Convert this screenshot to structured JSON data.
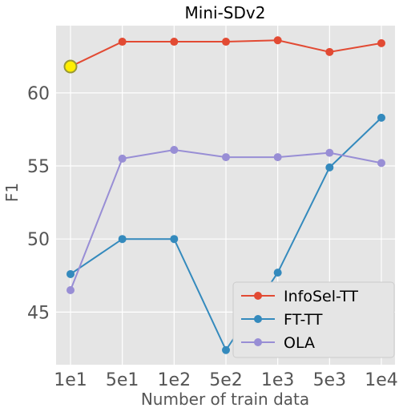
{
  "chart_data": {
    "type": "line",
    "title": "Mini-SDv2",
    "xlabel": "Number of train data",
    "ylabel": "F1",
    "categories": [
      "1e1",
      "5e1",
      "1e2",
      "5e2",
      "1e3",
      "5e3",
      "1e4"
    ],
    "ylim": [
      41.4,
      64.6
    ],
    "yticks": [
      45,
      50,
      55,
      60
    ],
    "grid": true,
    "legend_position": "bottom-right",
    "series": [
      {
        "name": "InfoSel-TT",
        "color": "#E24A33",
        "values": [
          61.8,
          63.5,
          63.5,
          63.5,
          63.6,
          62.8,
          63.4
        ]
      },
      {
        "name": "FT-TT",
        "color": "#348ABD",
        "values": [
          47.6,
          50.0,
          50.0,
          42.4,
          47.7,
          54.9,
          58.3
        ]
      },
      {
        "name": "OLA",
        "color": "#988ED5",
        "values": [
          46.5,
          55.5,
          56.1,
          55.6,
          55.6,
          55.9,
          55.2
        ]
      }
    ],
    "highlight": {
      "series_index": 0,
      "point_index": 0,
      "fill": "#FFEE00",
      "stroke": "#999933"
    }
  }
}
